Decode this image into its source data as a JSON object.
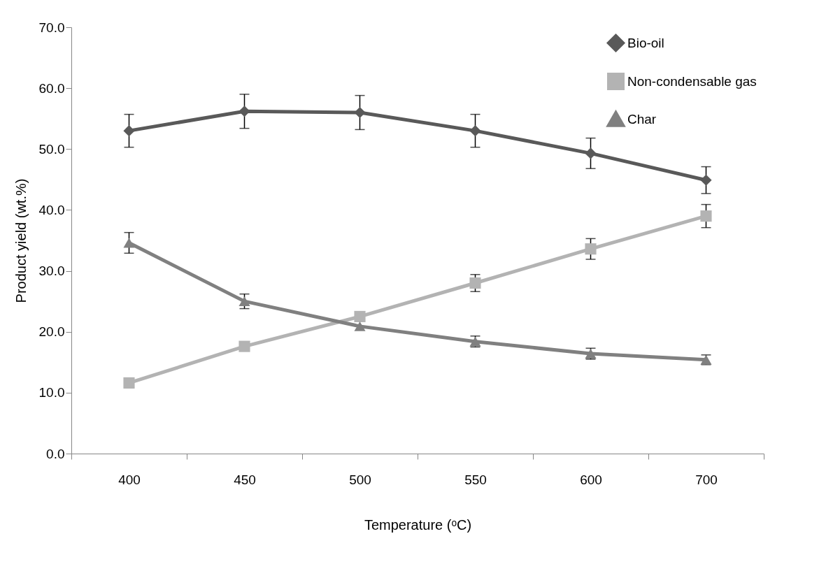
{
  "chart_data": {
    "type": "line",
    "xlabel": "Temperature (ᵒC)",
    "ylabel": "Product yield  (wt.%)",
    "categories": [
      "400",
      "450",
      "500",
      "550",
      "600",
      "700"
    ],
    "ylim": [
      0,
      70
    ],
    "yticks": [
      {
        "value": 0,
        "label": "0.0"
      },
      {
        "value": 10,
        "label": "10.0"
      },
      {
        "value": 20,
        "label": "20.0"
      },
      {
        "value": 30,
        "label": "30.0"
      },
      {
        "value": 40,
        "label": "40.0"
      },
      {
        "value": 50,
        "label": "50.0"
      },
      {
        "value": 60,
        "label": "60.0"
      },
      {
        "value": 70,
        "label": "70.0"
      }
    ],
    "grid": false,
    "legend": "top right",
    "line_style": "solid",
    "series": [
      {
        "name": "Bio-oil",
        "color": "#595959",
        "marker": "diamond",
        "values": [
          53.0,
          56.2,
          56.0,
          53.0,
          49.3,
          44.9
        ],
        "errors": [
          2.7,
          2.8,
          2.8,
          2.7,
          2.5,
          2.2
        ]
      },
      {
        "name": "Non-condensable gas",
        "color": "#b3b3b3",
        "marker": "square",
        "values": [
          11.6,
          17.6,
          22.5,
          28.0,
          33.6,
          39.0
        ],
        "errors": [
          null,
          null,
          null,
          1.4,
          1.7,
          1.9
        ]
      },
      {
        "name": "Char",
        "color": "#808080",
        "marker": "triangle",
        "values": [
          34.6,
          25.0,
          20.9,
          18.4,
          16.4,
          15.4
        ],
        "errors": [
          1.7,
          1.2,
          null,
          0.9,
          0.9,
          0.8
        ]
      }
    ]
  }
}
